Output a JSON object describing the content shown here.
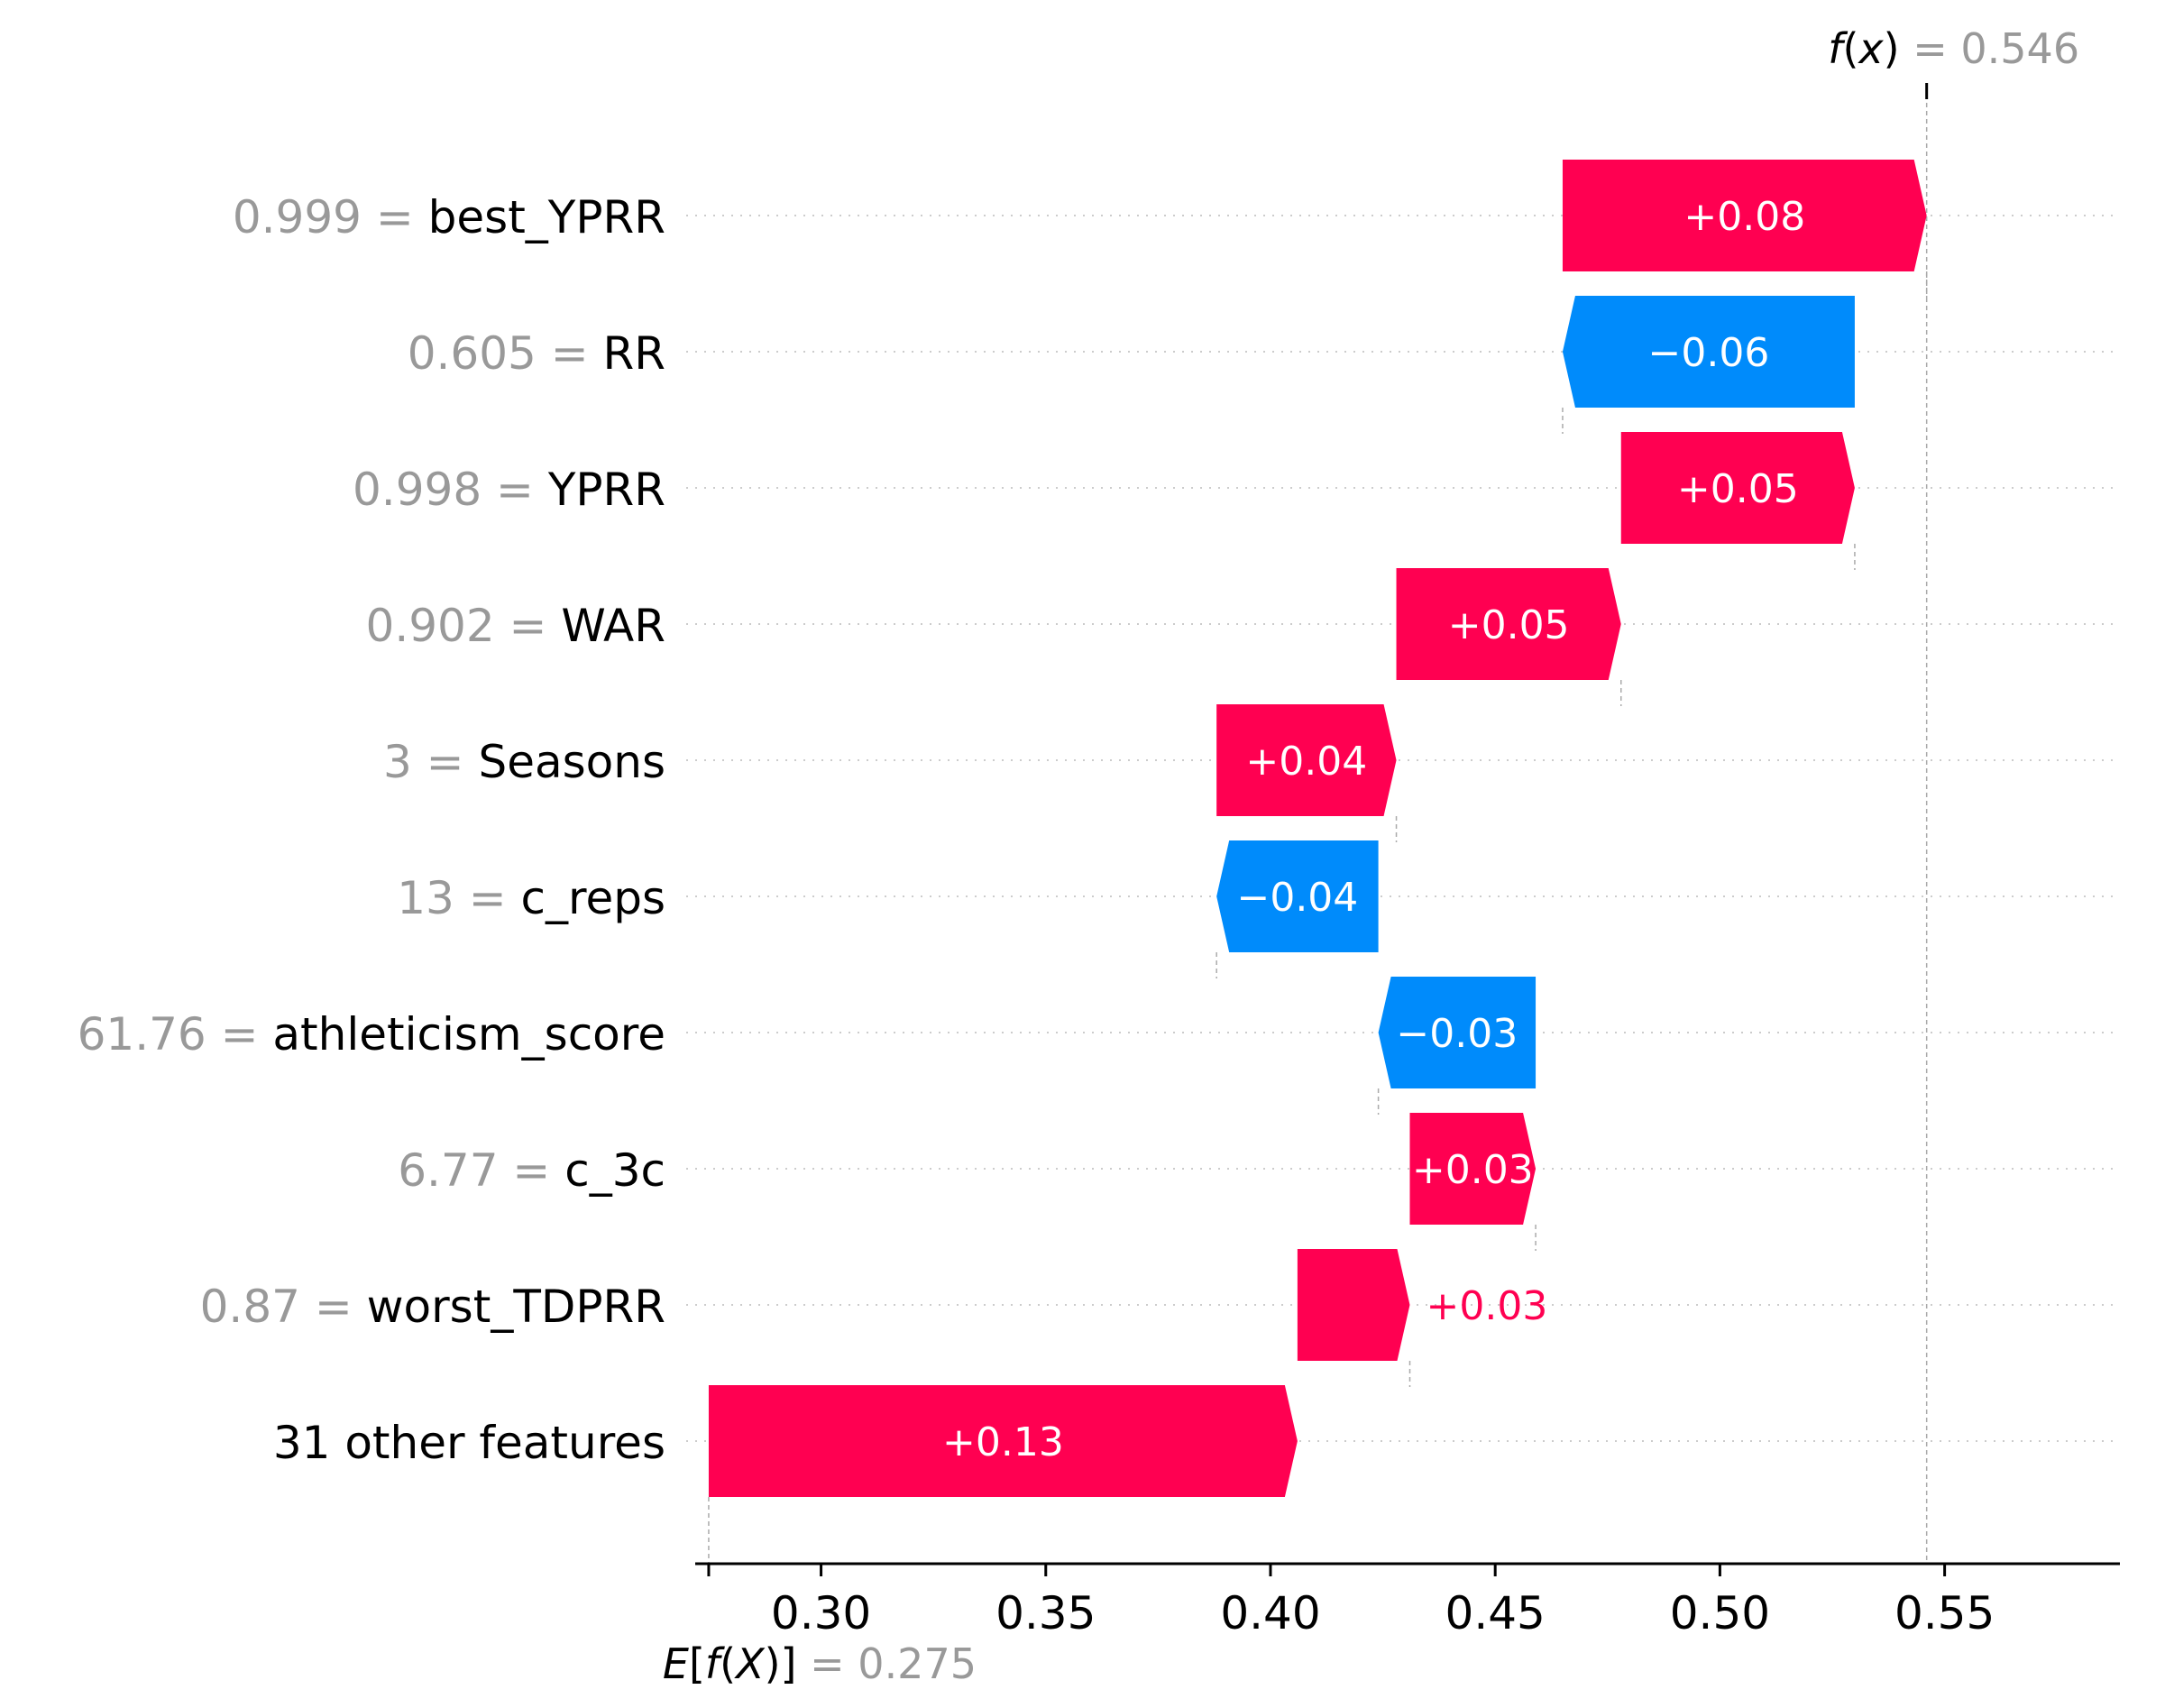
{
  "chart_data": {
    "type": "waterfall",
    "base_value": 0.275,
    "final_value": 0.546,
    "base_label": {
      "prefix": "E",
      "func": "f",
      "var": "X",
      "equals": "=",
      "value": "0.275"
    },
    "final_label": {
      "func": "f",
      "var": "x",
      "equals": "=",
      "value": "0.546"
    },
    "x_ticks": [
      0.3,
      0.35,
      0.4,
      0.45,
      0.5,
      0.55
    ],
    "x_tick_labels": [
      "0.30",
      "0.35",
      "0.40",
      "0.45",
      "0.50",
      "0.55"
    ],
    "xlim": [
      0.272,
      0.589
    ],
    "features": [
      {
        "value": "0.999",
        "name": "best_YPRR",
        "contribution": 0.081,
        "label": "+0.08",
        "label_outside": false
      },
      {
        "value": "0.605",
        "name": "RR",
        "contribution": -0.065,
        "label": "−0.06",
        "label_outside": false
      },
      {
        "value": "0.998",
        "name": "YPRR",
        "contribution": 0.052,
        "label": "+0.05",
        "label_outside": false
      },
      {
        "value": "0.902",
        "name": "WAR",
        "contribution": 0.05,
        "label": "+0.05",
        "label_outside": false
      },
      {
        "value": "3",
        "name": "Seasons",
        "contribution": 0.04,
        "label": "+0.04",
        "label_outside": false
      },
      {
        "value": "13",
        "name": "c_reps",
        "contribution": -0.036,
        "label": "−0.04",
        "label_outside": false
      },
      {
        "value": "61.76",
        "name": "athleticism_score",
        "contribution": -0.035,
        "label": "−0.03",
        "label_outside": false
      },
      {
        "value": "6.77",
        "name": "c_3c",
        "contribution": 0.028,
        "label": "+0.03",
        "label_outside": false
      },
      {
        "value": "0.87",
        "name": "worst_TDPRR",
        "contribution": 0.025,
        "label": "+0.03",
        "label_outside": true
      },
      {
        "value": "",
        "name": "31 other features",
        "contribution": 0.131,
        "label": "+0.13",
        "label_outside": false
      }
    ],
    "colors": {
      "positive": "#ff0051",
      "negative": "#008bfb",
      "value_text": "#999999",
      "grid": "#cccccc",
      "axis": "#000000"
    }
  }
}
